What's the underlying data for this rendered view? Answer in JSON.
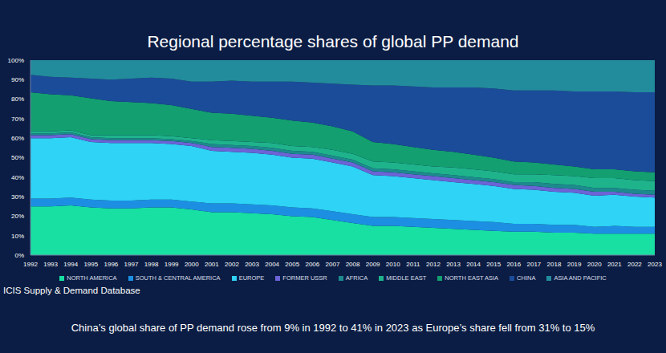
{
  "chart_data": {
    "type": "area",
    "title": "Regional percentage shares of global PP demand",
    "source": "ICIS Supply & Demand Database",
    "annotation": "China’s global share of PP demand rose from 9% in 1992 to 41% in 2023 as Europe’s share fell from 31% to 15%",
    "stacked": true,
    "grid": false,
    "legend": "bottom",
    "categories": [
      "1992",
      "1993",
      "1994",
      "1995",
      "1996",
      "1997",
      "1998",
      "1999",
      "2000",
      "2001",
      "2002",
      "2003",
      "2004",
      "2005",
      "2006",
      "2007",
      "2008",
      "2009",
      "2010",
      "2011",
      "2012",
      "2013",
      "2014",
      "2015",
      "2016",
      "2017",
      "2018",
      "2019",
      "2020",
      "2021",
      "2022",
      "2023"
    ],
    "ylim": [
      0,
      100
    ],
    "yticks": [
      {
        "value": 0,
        "label": "0%"
      },
      {
        "value": 10,
        "label": "10%"
      },
      {
        "value": 20,
        "label": "20%"
      },
      {
        "value": 30,
        "label": "30%"
      },
      {
        "value": 40,
        "label": "40%"
      },
      {
        "value": 50,
        "label": "50%"
      },
      {
        "value": 60,
        "label": "60%"
      },
      {
        "value": 70,
        "label": "70%"
      },
      {
        "value": 80,
        "label": "80%"
      },
      {
        "value": 90,
        "label": "90%"
      },
      {
        "value": 100,
        "label": "100%"
      }
    ],
    "series": [
      {
        "name": "NORTH AMERICA",
        "color": "#17e0a2",
        "values": [
          25,
          25,
          25.5,
          24.5,
          24,
          24,
          24.5,
          24.5,
          23.5,
          22,
          22,
          21.5,
          21,
          20,
          19.5,
          18,
          16.5,
          15,
          15,
          14.5,
          14,
          13.5,
          13,
          12.5,
          12,
          12,
          11.5,
          11.5,
          11,
          11,
          11,
          11
        ]
      },
      {
        "name": "SOUTH & CENTRAL AMERICA",
        "color": "#1c8fe3",
        "values": [
          4,
          4,
          4,
          4,
          4,
          4,
          4,
          4,
          4,
          4.5,
          4.5,
          4.5,
          4.5,
          4.5,
          4.5,
          4.5,
          4.5,
          4.5,
          4.5,
          4.5,
          4.5,
          4.5,
          4.5,
          4.5,
          4,
          4,
          4,
          4,
          3.5,
          4,
          3.5,
          3.5
        ]
      },
      {
        "name": "EUROPE",
        "color": "#2ed3f5",
        "values": [
          31,
          31,
          31,
          29.5,
          29.5,
          29.5,
          29,
          28.5,
          28.5,
          27,
          26.5,
          26.5,
          26,
          25.5,
          25.5,
          25,
          24.5,
          21.5,
          21,
          20.5,
          20,
          19.5,
          19,
          18.5,
          18,
          17.5,
          17,
          16.5,
          16,
          16,
          15.5,
          15
        ]
      },
      {
        "name": "FORMER USSR",
        "color": "#6b63d6",
        "values": [
          1.5,
          1.5,
          1.5,
          1.5,
          1.5,
          1.5,
          1.5,
          1.5,
          1.5,
          2,
          2,
          2,
          2,
          2,
          2,
          2,
          2,
          2,
          2,
          2,
          2,
          2,
          2,
          2,
          2,
          2,
          2,
          2,
          2,
          1.5,
          1.5,
          1.5
        ]
      },
      {
        "name": "AFRICA",
        "color": "#1d8a8e",
        "values": [
          1,
          1,
          1,
          1,
          1,
          1,
          1,
          1,
          1,
          1.5,
          1.5,
          1.5,
          1.5,
          1.5,
          1.5,
          1.5,
          1.5,
          1.5,
          1.5,
          1.5,
          1.5,
          1.5,
          1.5,
          1.5,
          1.5,
          2,
          2,
          2,
          2,
          2,
          2,
          2
        ]
      },
      {
        "name": "MIDDLE EAST",
        "color": "#1fb38c",
        "values": [
          1,
          1,
          1,
          1,
          1.5,
          1.5,
          1.5,
          1.5,
          1.5,
          2,
          2,
          2,
          2.5,
          2.5,
          2.5,
          3,
          3,
          3.5,
          3.5,
          3.5,
          3.5,
          4,
          4,
          4,
          4,
          4,
          4.5,
          4.5,
          5,
          5,
          5,
          5
        ]
      },
      {
        "name": "NORTH EAST ASIA",
        "color": "#139f70",
        "values": [
          20,
          19,
          18,
          19,
          17.5,
          17,
          16.5,
          16,
          15,
          14,
          14,
          13.5,
          13,
          13,
          12.5,
          12,
          11.5,
          10,
          9.5,
          9,
          8.5,
          8,
          7.5,
          7,
          6.5,
          6,
          5.5,
          5,
          4.5,
          4.5,
          4.5,
          4.5
        ]
      },
      {
        "name": "CHINA",
        "color": "#1b4c9a",
        "values": [
          9,
          9,
          9,
          10,
          11,
          12,
          13,
          13.5,
          14,
          16,
          17,
          17.5,
          18.5,
          20,
          20.5,
          22,
          24,
          29,
          30,
          31,
          32,
          33,
          34.5,
          35.5,
          36.5,
          37,
          38,
          38.5,
          40,
          40,
          40.5,
          41
        ]
      },
      {
        "name": "ASIA AND PACIFIC",
        "color": "#238c9c",
        "values": [
          7.5,
          8.5,
          9,
          9.5,
          10,
          9.5,
          9,
          9.5,
          11,
          11,
          10.5,
          11,
          11,
          11,
          11.5,
          12,
          12.5,
          13,
          13,
          13.5,
          14,
          14,
          14,
          14.5,
          15.5,
          15.5,
          15.5,
          16,
          16,
          16,
          16.5,
          16.5
        ]
      }
    ]
  }
}
